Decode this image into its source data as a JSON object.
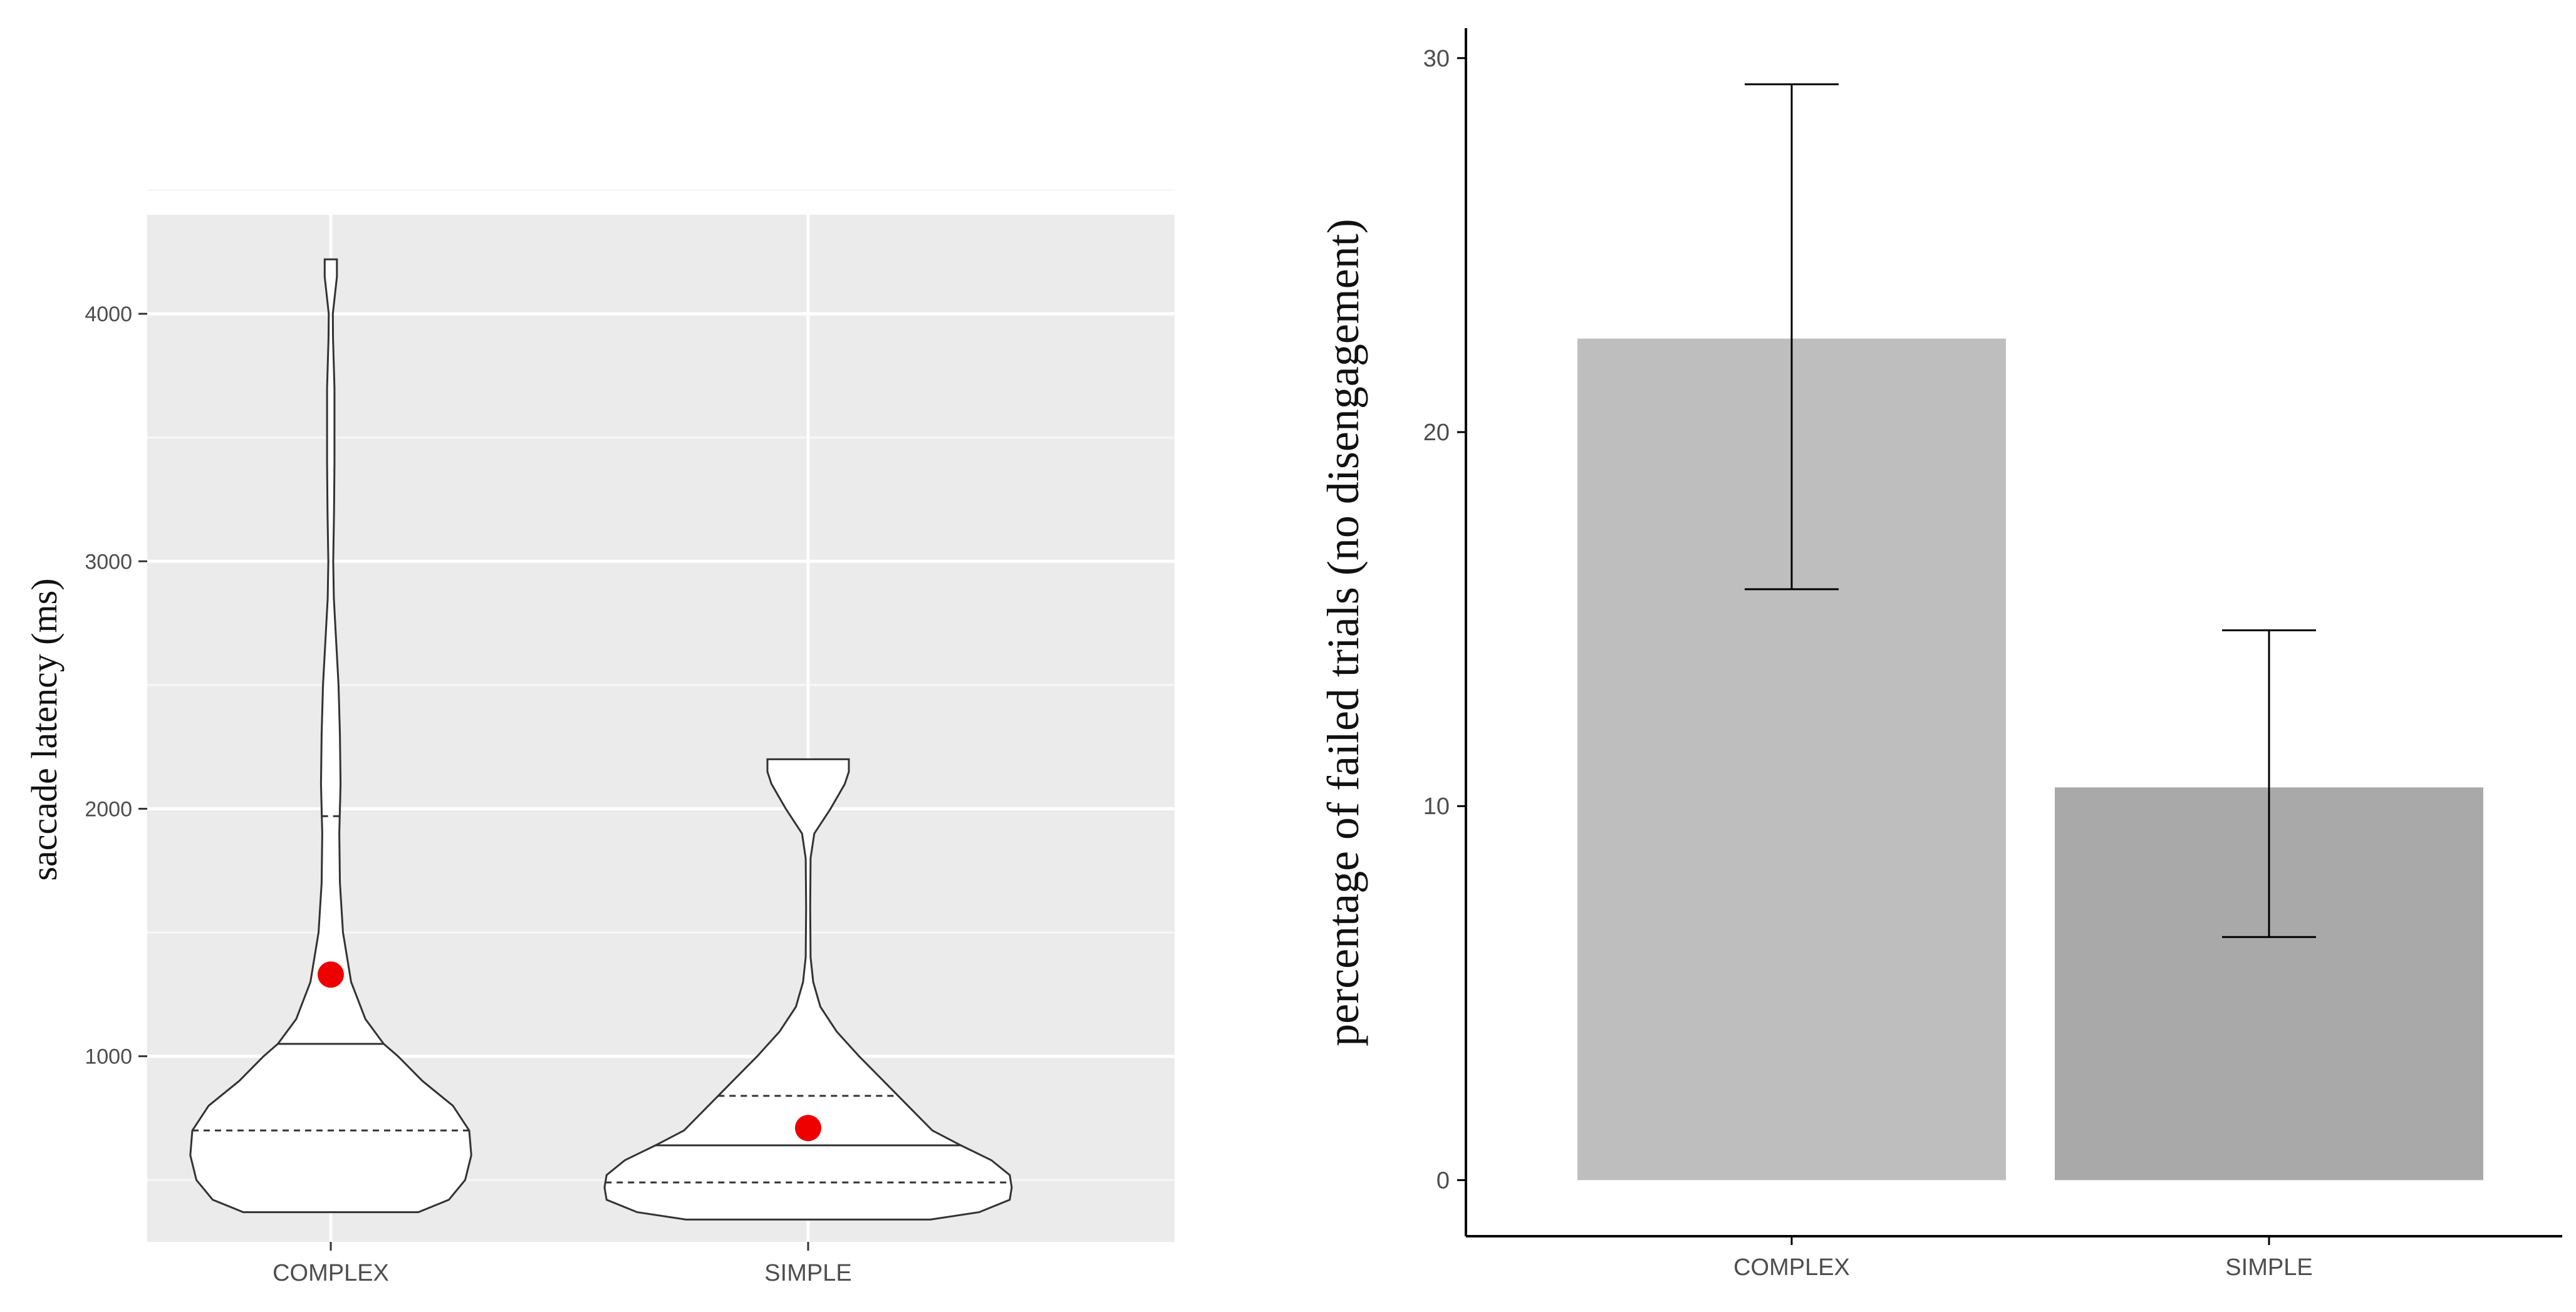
{
  "chart_data": [
    {
      "type": "violin",
      "ylabel": "saccade latency (ms)",
      "xlabel": "",
      "categories": [
        "COMPLEX",
        "SIMPLE"
      ],
      "ylim": [
        250,
        4400
      ],
      "yticks": [
        1000,
        2000,
        3000,
        4000
      ],
      "grid": true,
      "series": [
        {
          "category": "COMPLEX",
          "min": 370,
          "max": 4220,
          "q1": 700,
          "median": 1050,
          "q3": 1970,
          "mean": 1330,
          "density": [
            [
              370,
              0.43
            ],
            [
              420,
              0.58
            ],
            [
              500,
              0.66
            ],
            [
              600,
              0.69
            ],
            [
              700,
              0.68
            ],
            [
              800,
              0.6
            ],
            [
              900,
              0.45
            ],
            [
              1000,
              0.33
            ],
            [
              1050,
              0.26
            ],
            [
              1150,
              0.17
            ],
            [
              1300,
              0.1
            ],
            [
              1500,
              0.06
            ],
            [
              1700,
              0.045
            ],
            [
              1900,
              0.042
            ],
            [
              2100,
              0.048
            ],
            [
              2300,
              0.045
            ],
            [
              2500,
              0.038
            ],
            [
              2700,
              0.025
            ],
            [
              2850,
              0.015
            ],
            [
              3000,
              0.012
            ],
            [
              3200,
              0.016
            ],
            [
              3400,
              0.018
            ],
            [
              3700,
              0.018
            ],
            [
              3900,
              0.011
            ],
            [
              4000,
              0.01
            ],
            [
              4150,
              0.03
            ],
            [
              4220,
              0.03
            ]
          ]
        },
        {
          "category": "SIMPLE",
          "min": 340,
          "max": 2200,
          "q1": 490,
          "median": 640,
          "q3": 840,
          "mean": 710,
          "density": [
            [
              340,
              0.6
            ],
            [
              370,
              0.84
            ],
            [
              420,
              0.99
            ],
            [
              470,
              1.0
            ],
            [
              520,
              0.99
            ],
            [
              580,
              0.9
            ],
            [
              640,
              0.75
            ],
            [
              700,
              0.61
            ],
            [
              800,
              0.49
            ],
            [
              900,
              0.37
            ],
            [
              1000,
              0.25
            ],
            [
              1100,
              0.14
            ],
            [
              1200,
              0.06
            ],
            [
              1300,
              0.025
            ],
            [
              1400,
              0.012
            ],
            [
              1600,
              0.01
            ],
            [
              1800,
              0.012
            ],
            [
              1900,
              0.03
            ],
            [
              2000,
              0.11
            ],
            [
              2100,
              0.18
            ],
            [
              2150,
              0.2
            ],
            [
              2200,
              0.2
            ]
          ]
        }
      ]
    },
    {
      "type": "bar",
      "ylabel": "percentage of failed trials (no disengagement)",
      "xlabel": "",
      "categories": [
        "COMPLEX",
        "SIMPLE"
      ],
      "values": [
        22.5,
        10.5
      ],
      "error_low": [
        15.8,
        6.5
      ],
      "error_high": [
        29.3,
        14.7
      ],
      "colors": [
        "#bebebe",
        "#a9a9a9"
      ],
      "ylim": [
        -1.5,
        30.8
      ],
      "yticks": [
        0,
        10,
        20,
        30
      ],
      "grid": false
    }
  ]
}
